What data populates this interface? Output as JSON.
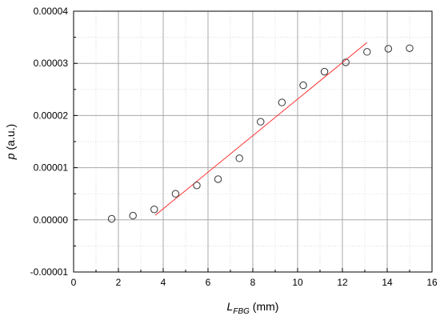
{
  "chart_data": {
    "type": "scatter",
    "xlabel_main": "L",
    "xlabel_sub": "FBG",
    "xlabel_unit": " (mm)",
    "ylabel_main": "p",
    "ylabel_unit": " (a.u.)",
    "xlim": [
      0,
      16
    ],
    "ylim": [
      -1e-05,
      4e-05
    ],
    "xticks": [
      "0",
      "2",
      "4",
      "6",
      "8",
      "10",
      "12",
      "14",
      "16"
    ],
    "yticks": [
      "-0.00001",
      "0.00000",
      "0.00001",
      "0.00002",
      "0.00003",
      "0.00004"
    ],
    "grid": true,
    "legend": "none",
    "series": [
      {
        "marker": "open-circle",
        "color": "#333333",
        "x": [
          1.7,
          2.65,
          3.6,
          4.55,
          5.5,
          6.45,
          7.4,
          8.35,
          9.3,
          10.25,
          11.2,
          12.15,
          13.1,
          14.05,
          15.0
        ],
        "y": [
          2e-07,
          8e-07,
          2e-06,
          5e-06,
          6.6e-06,
          7.8e-06,
          1.18e-05,
          1.88e-05,
          2.25e-05,
          2.58e-05,
          2.84e-05,
          3.02e-05,
          3.22e-05,
          3.28e-05,
          3.29e-05
        ]
      }
    ],
    "fit_line": {
      "color": "#ff3333",
      "x": [
        3.65,
        13.1
      ],
      "y": [
        9e-07,
        3.4e-05
      ]
    }
  }
}
